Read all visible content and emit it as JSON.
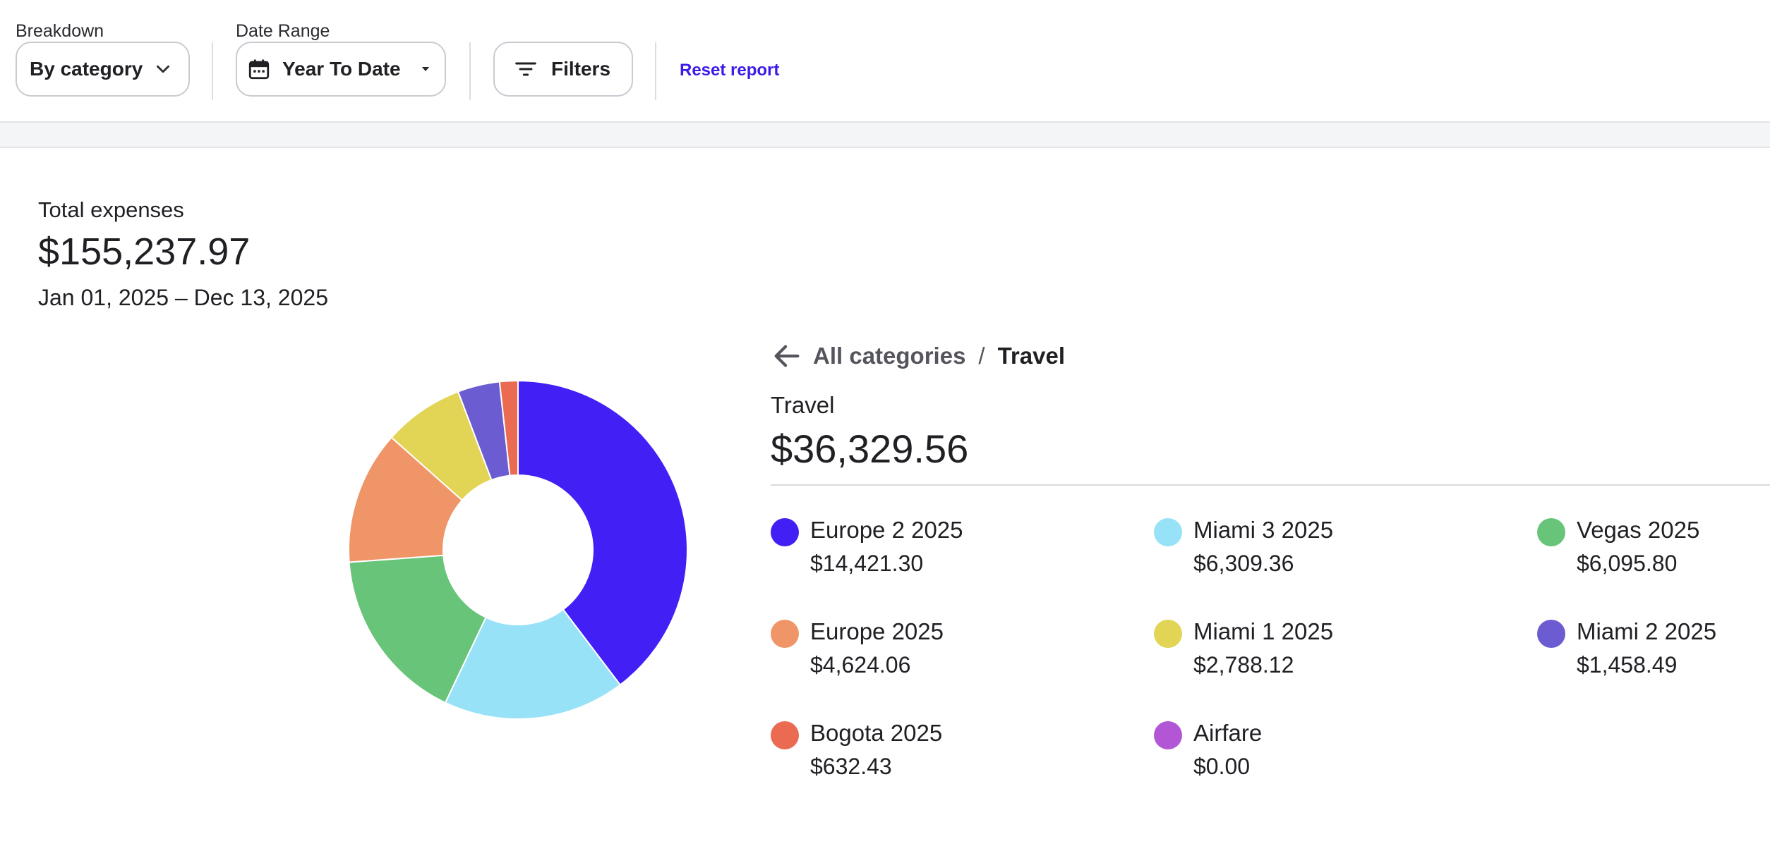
{
  "toolbar": {
    "breakdown": {
      "label": "Breakdown",
      "value": "By category"
    },
    "date_range": {
      "label": "Date Range",
      "value": "Year To Date"
    },
    "filters_label": "Filters",
    "reset_label": "Reset report"
  },
  "summary": {
    "label": "Total expenses",
    "total": "$155,237.97",
    "range": "Jan 01, 2025 – Dec 13, 2025"
  },
  "breadcrumb": {
    "parent": "All categories",
    "separator": "/",
    "current": "Travel"
  },
  "category": {
    "name": "Travel",
    "total": "$36,329.56"
  },
  "legend": [
    {
      "name": "Europe 2 2025",
      "amount": "$14,421.30",
      "color": "#4220f5"
    },
    {
      "name": "Miami 3 2025",
      "amount": "$6,309.36",
      "color": "#98e2f7"
    },
    {
      "name": "Vegas 2025",
      "amount": "$6,095.80",
      "color": "#68c478"
    },
    {
      "name": "Europe 2025",
      "amount": "$4,624.06",
      "color": "#f09567"
    },
    {
      "name": "Miami 1 2025",
      "amount": "$2,788.12",
      "color": "#e2d454"
    },
    {
      "name": "Miami 2 2025",
      "amount": "$1,458.49",
      "color": "#6b5cd1"
    },
    {
      "name": "Bogota 2025",
      "amount": "$632.43",
      "color": "#eb6a52"
    },
    {
      "name": "Airfare",
      "amount": "$0.00",
      "color": "#b356d6"
    }
  ],
  "chart_data": {
    "type": "pie",
    "categories": [
      "Europe 2 2025",
      "Miami 3 2025",
      "Vegas 2025",
      "Europe 2025",
      "Miami 1 2025",
      "Miami 2 2025",
      "Bogota 2025",
      "Airfare"
    ],
    "values": [
      14421.3,
      6309.36,
      6095.8,
      4624.06,
      2788.12,
      1458.49,
      632.43,
      0.0
    ],
    "colors": [
      "#4220f5",
      "#98e2f7",
      "#68c478",
      "#f09567",
      "#e2d454",
      "#6b5cd1",
      "#eb6a52",
      "#b356d6"
    ],
    "style": "donut"
  }
}
